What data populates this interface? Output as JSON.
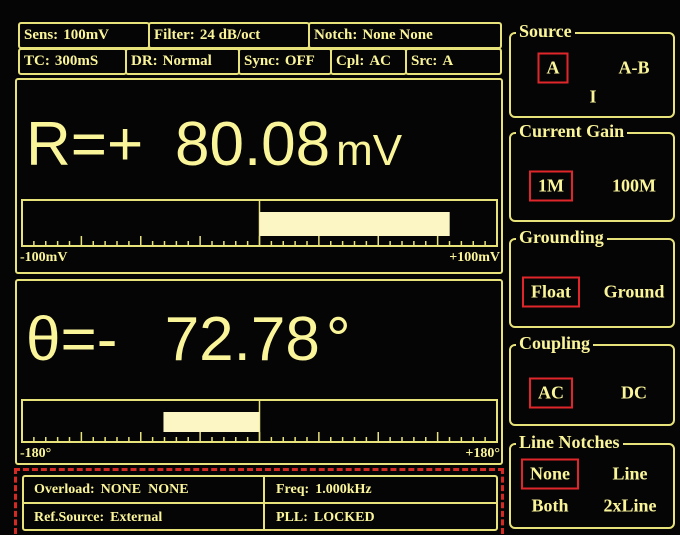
{
  "status_top": {
    "row1": [
      {
        "label": "Sens:",
        "value": "100mV"
      },
      {
        "label": "Filter:",
        "value": "24 dB/oct"
      },
      {
        "label": "Notch:",
        "value": "None None"
      }
    ],
    "row2": [
      {
        "label": "TC:",
        "value": "300mS"
      },
      {
        "label": "DR:",
        "value": "Normal"
      },
      {
        "label": "Sync:",
        "value": "OFF"
      },
      {
        "label": "Cpl:",
        "value": "AC"
      },
      {
        "label": "Src:",
        "value": "A"
      }
    ]
  },
  "readouts": [
    {
      "name": "R=",
      "sign": "+",
      "value": 80.08,
      "unit": "mV",
      "scale": {
        "min": {
          "value": -100,
          "label": "-100mV"
        },
        "max": {
          "value": 100,
          "label": "+100mV"
        }
      }
    },
    {
      "name": "θ=",
      "sign": "-",
      "value": 72.78,
      "unit": "°",
      "scale": {
        "min": {
          "value": -180,
          "label": "-180°"
        },
        "max": {
          "value": 180,
          "label": "+180°"
        }
      }
    }
  ],
  "status_bottom": {
    "overload_label": "Overload:",
    "overload": "NONE  NONE",
    "freq_label": "Freq:",
    "freq": "1.000kHz",
    "ref_label": "Ref.Source:",
    "ref": "External",
    "pll_label": "PLL:",
    "pll": "LOCKED"
  },
  "panels": [
    {
      "title": "Source",
      "options": [
        "A",
        "A-B",
        "I"
      ],
      "selected": 0
    },
    {
      "title": "Current Gain",
      "options": [
        "1M",
        "100M"
      ],
      "selected": 0
    },
    {
      "title": "Grounding",
      "options": [
        "Float",
        "Ground"
      ],
      "selected": 0
    },
    {
      "title": "Coupling",
      "options": [
        "AC",
        "DC"
      ],
      "selected": 0
    },
    {
      "title": "Line Notches",
      "options": [
        "None",
        "Line",
        "Both",
        "2xLine"
      ],
      "selected": 0
    }
  ]
}
